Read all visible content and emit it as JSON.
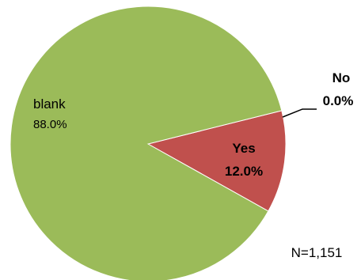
{
  "chart_data": {
    "type": "pie",
    "slices": [
      {
        "label": "Yes",
        "value": 12.0,
        "display": "12.0%",
        "color": "#c0504d"
      },
      {
        "label": "blank",
        "value": 88.0,
        "display": "88.0%",
        "color": "#9bbb59"
      },
      {
        "label": "No",
        "value": 0.0,
        "display": "0.0%",
        "color": "#4f81bd"
      }
    ],
    "start_angle_deg": -14,
    "annotation": "N=1,151"
  }
}
